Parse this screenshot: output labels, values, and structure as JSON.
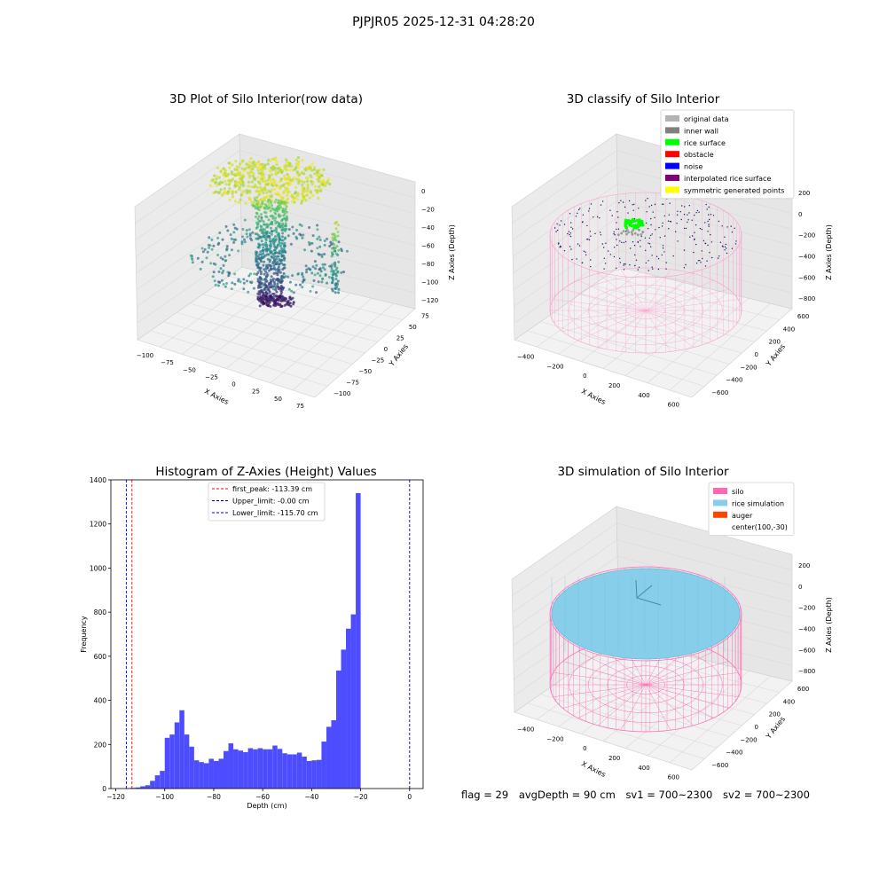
{
  "suptitle": "PJPJR05 2025-12-31 04:28:20",
  "status": {
    "flag": "flag = 29",
    "avg_depth": "avgDepth = 90 cm",
    "sv1": "sv1 = 700~2300",
    "sv2": "sv2 = 700~2300"
  },
  "colors": {
    "pane": "#f2f2f2",
    "grid": "#d9d9d9",
    "hist_bar": "#4d4dff",
    "silo_wire": "#ff69b4",
    "rice_sim": "#87ceeb",
    "rice_surface": "#00ff00",
    "viridis": [
      "#440154",
      "#3b528b",
      "#21918c",
      "#5ec962",
      "#fde725"
    ]
  },
  "chart_data": [
    {
      "type": "scatter",
      "plot": "3d",
      "title": "3D Plot of Silo Interior(row data)",
      "xlabel": "X Axies",
      "ylabel": "Y Axies",
      "zlabel": "Z Axies (Depth)",
      "xticks": [
        "−100",
        "−75",
        "−50",
        "−25",
        "0",
        "25",
        "50",
        "75"
      ],
      "yticks": [
        "−100",
        "−75",
        "−50",
        "−25",
        "0",
        "25",
        "50",
        "75"
      ],
      "zticks": [
        "−120",
        "−100",
        "−80",
        "−60",
        "−40",
        "−20",
        "0"
      ],
      "xlim": [
        -110,
        90
      ],
      "ylim": [
        -110,
        85
      ],
      "zlim": [
        -125,
        5
      ],
      "colormap": "viridis",
      "grid": true
    },
    {
      "type": "scatter",
      "plot": "3d",
      "title": "3D classify of Silo Interior",
      "xlabel": "X Axies",
      "ylabel": "Y Axies",
      "zlabel": "Z Axies (Depth)",
      "xticks": [
        "−400",
        "−200",
        "0",
        "200",
        "400",
        "600"
      ],
      "yticks": [
        "−600",
        "−400",
        "−200",
        "0",
        "200",
        "400",
        "600"
      ],
      "zticks": [
        "−800",
        "−600",
        "−400",
        "−200",
        "0",
        "200"
      ],
      "legend_position": "top-right",
      "legend": [
        {
          "label": "original data",
          "color": "#b3b3b3"
        },
        {
          "label": "inner wall",
          "color": "#808080"
        },
        {
          "label": "rice surface",
          "color": "#00ff00"
        },
        {
          "label": "obstacle",
          "color": "#ff0000"
        },
        {
          "label": "noise",
          "color": "#0000ff"
        },
        {
          "label": "interpolated rice surface",
          "color": "#800080"
        },
        {
          "label": "symmetric generated points",
          "color": "#ffff00"
        }
      ],
      "grid": true
    },
    {
      "type": "bar",
      "title": "Histogram of Z-Axies (Height) Values",
      "xlabel": "Depth (cm)",
      "ylabel": "Frequency",
      "xlim": [
        -122,
        5.5
      ],
      "ylim": [
        0,
        1400
      ],
      "xticks": [
        {
          "v": -120,
          "t": "−120"
        },
        {
          "v": -100,
          "t": "−100"
        },
        {
          "v": -80,
          "t": "−80"
        },
        {
          "v": -60,
          "t": "−60"
        },
        {
          "v": -40,
          "t": "−40"
        },
        {
          "v": -20,
          "t": "−20"
        },
        {
          "v": 0,
          "t": "0"
        }
      ],
      "yticks": [
        0,
        200,
        400,
        600,
        800,
        1000,
        1200,
        1400
      ],
      "bin_width": 2.0,
      "bin_start": -116,
      "values": [
        2,
        3,
        5,
        10,
        15,
        35,
        60,
        80,
        230,
        245,
        300,
        355,
        245,
        190,
        128,
        120,
        115,
        135,
        125,
        135,
        170,
        205,
        178,
        172,
        165,
        183,
        178,
        183,
        178,
        178,
        195,
        180,
        160,
        155,
        155,
        163,
        145,
        125,
        128,
        130,
        213,
        280,
        310,
        535,
        630,
        725,
        790,
        1340
      ],
      "vlines": [
        {
          "label": "first_peak: -113.39 cm",
          "x": -113.39,
          "color": "#ff0000"
        },
        {
          "label": "Upper_limit: -0.00 cm",
          "x": -0.0,
          "color": "#00008b"
        },
        {
          "label": "Lower_limit: -115.70 cm",
          "x": -115.7,
          "color": "#0000ff"
        }
      ],
      "legend_position": "top-center",
      "grid": false
    },
    {
      "type": "scatter",
      "plot": "3d",
      "title": "3D simulation of Silo Interior",
      "xlabel": "X Axies",
      "ylabel": "Y Axies",
      "zlabel": "Z Axies (Depth)",
      "xticks": [
        "−400",
        "−200",
        "0",
        "200",
        "400",
        "600"
      ],
      "yticks": [
        "−600",
        "−400",
        "−200",
        "0",
        "200",
        "400",
        "600"
      ],
      "zticks": [
        "−800",
        "−600",
        "−400",
        "−200",
        "0",
        "200"
      ],
      "legend_position": "top-right",
      "legend": [
        {
          "label": "silo",
          "color": "#ff69b4"
        },
        {
          "label": "rice simulation",
          "color": "#87ceeb"
        },
        {
          "label": "auger",
          "color": "#ff4500"
        },
        {
          "label": "center(100,-30)",
          "color": ""
        }
      ],
      "grid": true
    }
  ]
}
